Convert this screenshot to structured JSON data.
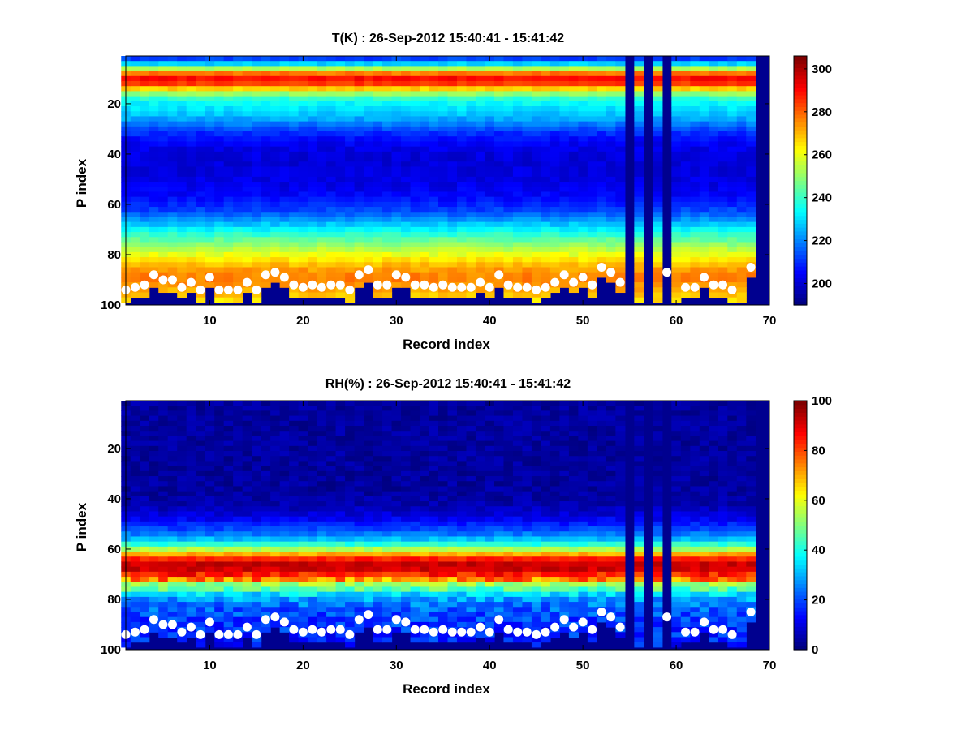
{
  "chart_data": [
    {
      "type": "heatmap",
      "title": "T(K) : 26-Sep-2012 15:40:41 - 15:41:42",
      "xlabel": "Record index",
      "ylabel": "P index",
      "xlim": [
        1,
        70
      ],
      "ylim": [
        100,
        1
      ],
      "y_reversed": true,
      "xticks": [
        10,
        20,
        30,
        40,
        50,
        60,
        70
      ],
      "yticks": [
        20,
        40,
        60,
        80,
        100
      ],
      "colormap": "jet",
      "colorbar": {
        "range": [
          190,
          306
        ],
        "ticks": [
          200,
          220,
          240,
          260,
          280,
          300
        ]
      },
      "profile_description": "warm band near P index 8-12 (~280 K), cold core near P index 40 (~200 K), warm layer near 80-95 (~280-290 K)",
      "missing_records": [
        55,
        57,
        59,
        69,
        70
      ],
      "surface_markers": {
        "x": [
          1,
          2,
          3,
          4,
          5,
          6,
          7,
          8,
          9,
          10,
          11,
          12,
          13,
          14,
          15,
          16,
          17,
          18,
          19,
          20,
          21,
          22,
          23,
          24,
          25,
          26,
          27,
          28,
          29,
          30,
          31,
          32,
          33,
          34,
          35,
          36,
          37,
          38,
          39,
          40,
          41,
          42,
          43,
          44,
          45,
          46,
          47,
          48,
          49,
          50,
          51,
          52,
          53,
          54,
          59,
          61,
          62,
          63,
          64,
          65,
          66,
          68
        ],
        "y": [
          94,
          93,
          92,
          88,
          90,
          90,
          93,
          91,
          94,
          89,
          94,
          94,
          94,
          91,
          94,
          88,
          87,
          89,
          92,
          93,
          92,
          93,
          92,
          92,
          94,
          88,
          86,
          92,
          92,
          88,
          89,
          92,
          92,
          93,
          92,
          93,
          93,
          93,
          91,
          93,
          88,
          92,
          93,
          93,
          94,
          93,
          91,
          88,
          91,
          89,
          92,
          85,
          87,
          91,
          87,
          93,
          93,
          89,
          92,
          92,
          94,
          85
        ]
      }
    },
    {
      "type": "heatmap",
      "title": "RH(%) : 26-Sep-2012 15:40:41 - 15:41:42",
      "xlabel": "Record index",
      "ylabel": "P index",
      "xlim": [
        1,
        70
      ],
      "ylim": [
        100,
        1
      ],
      "y_reversed": true,
      "xticks": [
        10,
        20,
        30,
        40,
        50,
        60,
        70
      ],
      "yticks": [
        20,
        40,
        60,
        80,
        100
      ],
      "colormap": "jet",
      "colorbar": {
        "range": [
          0,
          100
        ],
        "ticks": [
          0,
          20,
          40,
          60,
          80,
          100
        ]
      },
      "profile_description": "dry (~0-5%) above P index 40, moist band P index 55-72 peaking ~90% near 70, lower values near 75-95",
      "missing_records": [
        55,
        57,
        59,
        69,
        70
      ],
      "surface_markers": {
        "x": [
          1,
          2,
          3,
          4,
          5,
          6,
          7,
          8,
          9,
          10,
          11,
          12,
          13,
          14,
          15,
          16,
          17,
          18,
          19,
          20,
          21,
          22,
          23,
          24,
          25,
          26,
          27,
          28,
          29,
          30,
          31,
          32,
          33,
          34,
          35,
          36,
          37,
          38,
          39,
          40,
          41,
          42,
          43,
          44,
          45,
          46,
          47,
          48,
          49,
          50,
          51,
          52,
          53,
          54,
          59,
          61,
          62,
          63,
          64,
          65,
          66,
          68
        ],
        "y": [
          94,
          93,
          92,
          88,
          90,
          90,
          93,
          91,
          94,
          89,
          94,
          94,
          94,
          91,
          94,
          88,
          87,
          89,
          92,
          93,
          92,
          93,
          92,
          92,
          94,
          88,
          86,
          92,
          92,
          88,
          89,
          92,
          92,
          93,
          92,
          93,
          93,
          93,
          91,
          93,
          88,
          92,
          93,
          93,
          94,
          93,
          91,
          88,
          91,
          89,
          92,
          85,
          87,
          91,
          87,
          93,
          93,
          89,
          92,
          92,
          94,
          85
        ]
      }
    }
  ]
}
